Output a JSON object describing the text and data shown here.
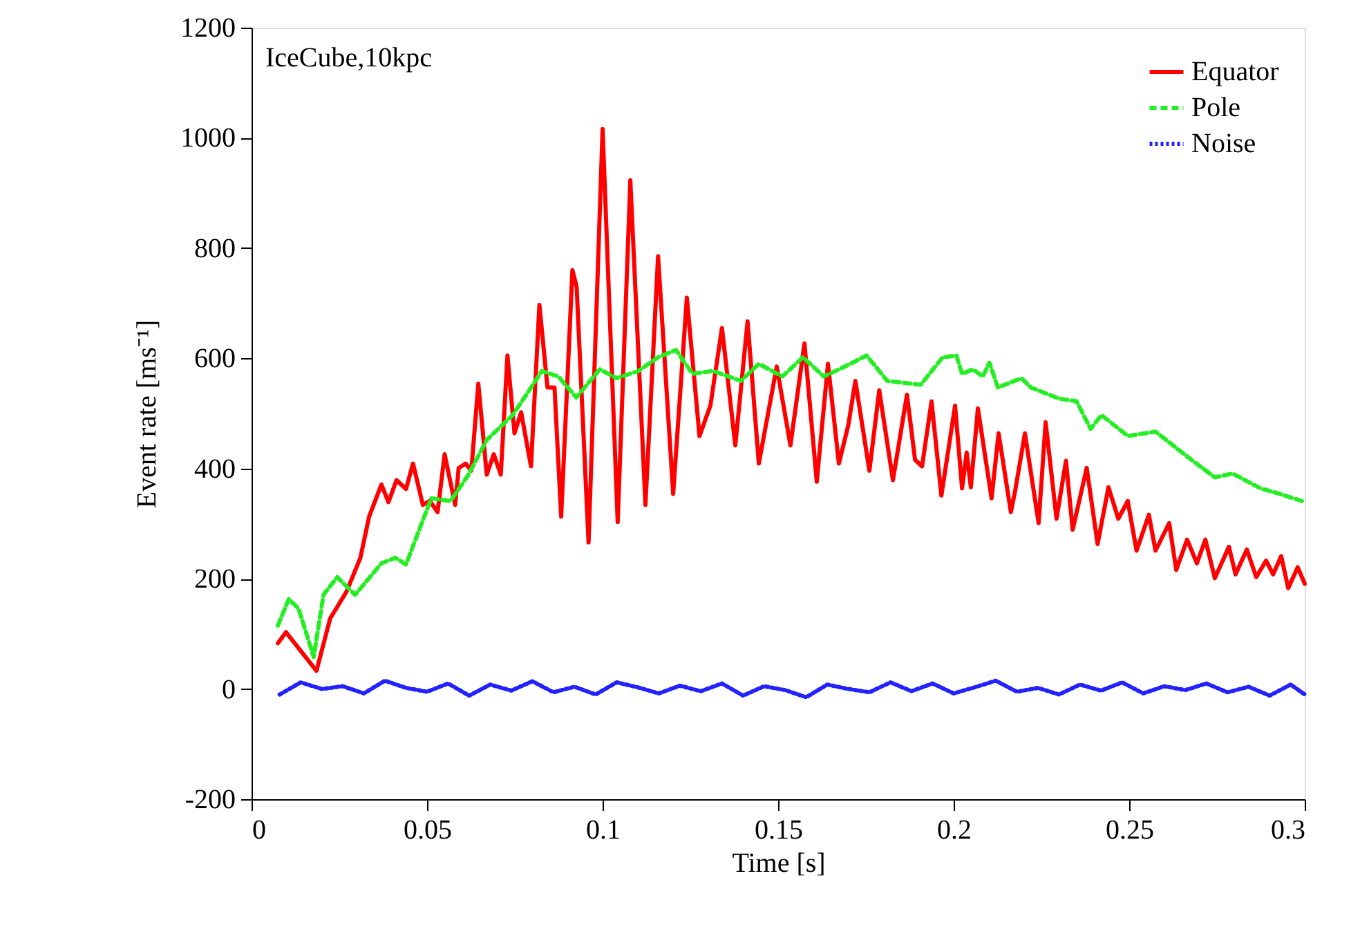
{
  "chart_data": {
    "type": "line",
    "xlabel": "Time [s]",
    "ylabel": "Event rate [ms⁻¹]",
    "annotations": [
      "IceCube,10kpc"
    ],
    "xlim": [
      0,
      0.3
    ],
    "xticks": [
      0,
      0.05,
      0.1,
      0.15,
      0.2,
      0.25,
      0.3
    ],
    "ylim": [
      -200,
      1200
    ],
    "yticks": [
      -200,
      0,
      200,
      400,
      600,
      800,
      1000,
      1200
    ],
    "grid": false,
    "legend": "top right",
    "marker": "none",
    "series": [
      {
        "name": "Equator",
        "color": "#ff0000",
        "line_style": "solid",
        "x": [
          0.0075,
          0.0098,
          0.0185,
          0.0224,
          0.027,
          0.031,
          0.0335,
          0.037,
          0.039,
          0.0413,
          0.044,
          0.046,
          0.0488,
          0.0508,
          0.053,
          0.055,
          0.058,
          0.059,
          0.061,
          0.0626,
          0.0646,
          0.067,
          0.069,
          0.071,
          0.0729,
          0.0749,
          0.0768,
          0.0796,
          0.082,
          0.0843,
          0.0863,
          0.0882,
          0.0914,
          0.0926,
          0.096,
          0.1,
          0.1043,
          0.1079,
          0.1122,
          0.1158,
          0.1201,
          0.124,
          0.1276,
          0.1307,
          0.134,
          0.1378,
          0.1413,
          0.1445,
          0.1496,
          0.1535,
          0.1575,
          0.161,
          0.1642,
          0.1673,
          0.17,
          0.172,
          0.176,
          0.1788,
          0.1827,
          0.1867,
          0.189,
          0.191,
          0.1937,
          0.1965,
          0.2004,
          0.2024,
          0.2037,
          0.2049,
          0.2069,
          0.2108,
          0.2128,
          0.2163,
          0.2175,
          0.2203,
          0.2242,
          0.2262,
          0.2293,
          0.232,
          0.2339,
          0.2379,
          0.241,
          0.2441,
          0.2469,
          0.2496,
          0.2521,
          0.2556,
          0.2575,
          0.2614,
          0.2634,
          0.2665,
          0.2693,
          0.2717,
          0.2744,
          0.2784,
          0.2803,
          0.2835,
          0.2862,
          0.289,
          0.291,
          0.2933,
          0.2953,
          0.298,
          0.3
        ],
        "values": [
          83,
          103,
          33,
          128,
          176,
          238,
          313,
          371,
          339,
          379,
          363,
          409,
          334,
          341,
          321,
          426,
          334,
          401,
          409,
          396,
          554,
          389,
          426,
          389,
          605,
          464,
          502,
          404,
          697,
          547,
          547,
          313,
          760,
          730,
          266,
          1016,
          303,
          923,
          334,
          785,
          354,
          710,
          459,
          514,
          655,
          442,
          667,
          409,
          585,
          442,
          627,
          376,
          590,
          409,
          479,
          559,
          396,
          542,
          379,
          534,
          416,
          404,
          522,
          351,
          514,
          364,
          429,
          366,
          509,
          346,
          464,
          321,
          359,
          464,
          301,
          484,
          309,
          414,
          289,
          401,
          263,
          366,
          309,
          341,
          251,
          316,
          251,
          301,
          216,
          271,
          228,
          271,
          201,
          258,
          208,
          253,
          203,
          233,
          208,
          241,
          183,
          221,
          191
        ]
      },
      {
        "name": "Pole",
        "color": "#22ee22",
        "line_style": "dashed",
        "x": [
          0.0075,
          0.0106,
          0.0134,
          0.0177,
          0.0205,
          0.0244,
          0.0295,
          0.037,
          0.041,
          0.044,
          0.0512,
          0.0567,
          0.0618,
          0.067,
          0.0744,
          0.0788,
          0.0827,
          0.0874,
          0.0925,
          0.0992,
          0.104,
          0.1102,
          0.1158,
          0.1209,
          0.1256,
          0.1315,
          0.1394,
          0.1445,
          0.1512,
          0.1571,
          0.163,
          0.169,
          0.1752,
          0.1811,
          0.1906,
          0.1969,
          0.2008,
          0.2024,
          0.2055,
          0.2083,
          0.2102,
          0.2126,
          0.2193,
          0.222,
          0.23,
          0.235,
          0.239,
          0.2421,
          0.2496,
          0.2575,
          0.2677,
          0.2744,
          0.2795,
          0.2874,
          0.2929,
          0.2992
        ],
        "values": [
          115,
          163,
          146,
          58,
          171,
          203,
          171,
          228,
          238,
          226,
          346,
          341,
          389,
          452,
          497,
          539,
          577,
          567,
          529,
          580,
          564,
          577,
          602,
          615,
          572,
          577,
          559,
          590,
          567,
          602,
          567,
          585,
          605,
          559,
          552,
          602,
          605,
          572,
          580,
          567,
          592,
          547,
          564,
          547,
          527,
          522,
          472,
          497,
          459,
          467,
          416,
          384,
          391,
          364,
          354,
          341
        ]
      },
      {
        "name": "Noise",
        "color": "#2222ff",
        "line_style": "dotted",
        "x": [
          0.008,
          0.014,
          0.02,
          0.026,
          0.032,
          0.038,
          0.044,
          0.05,
          0.056,
          0.062,
          0.068,
          0.074,
          0.08,
          0.086,
          0.092,
          0.098,
          0.104,
          0.11,
          0.116,
          0.122,
          0.128,
          0.134,
          0.14,
          0.146,
          0.152,
          0.158,
          0.164,
          0.17,
          0.176,
          0.182,
          0.188,
          0.194,
          0.2,
          0.206,
          0.212,
          0.218,
          0.224,
          0.23,
          0.236,
          0.242,
          0.248,
          0.254,
          0.26,
          0.266,
          0.272,
          0.278,
          0.284,
          0.29,
          0.296,
          0.3
        ],
        "values": [
          -10,
          12,
          0,
          5,
          -8,
          15,
          2,
          -5,
          10,
          -12,
          8,
          -3,
          14,
          -6,
          4,
          -10,
          12,
          3,
          -8,
          6,
          -4,
          10,
          -12,
          5,
          -2,
          -15,
          8,
          0,
          -6,
          12,
          -4,
          10,
          -8,
          3,
          15,
          -5,
          2,
          -10,
          8,
          -3,
          12,
          -8,
          5,
          -2,
          10,
          -6,
          4,
          -12,
          8,
          -10
        ]
      }
    ]
  }
}
